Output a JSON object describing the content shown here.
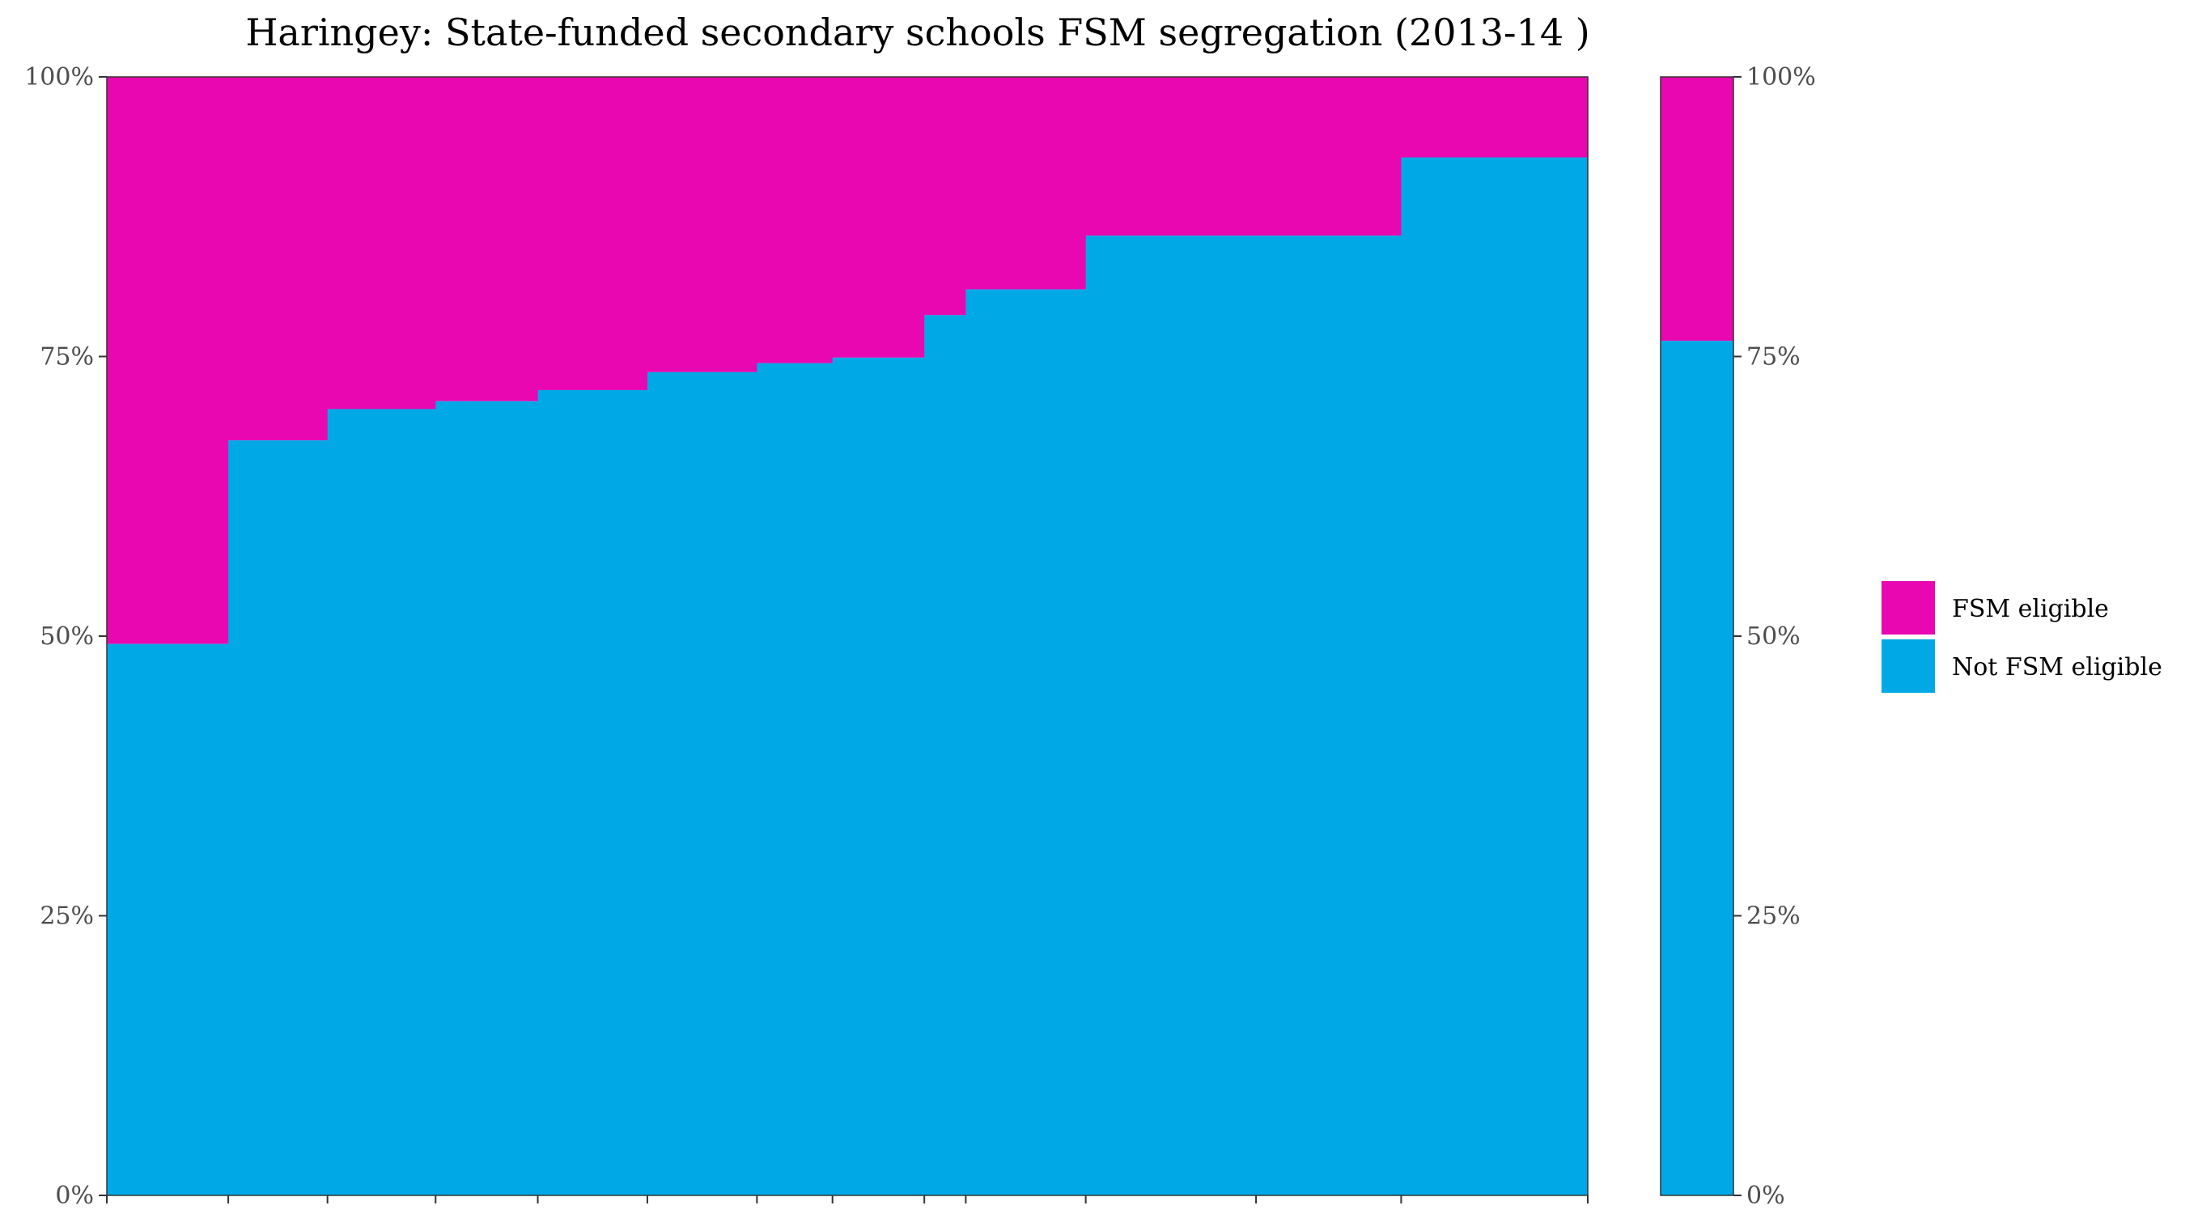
{
  "colors": {
    "fsm": "#E807B0",
    "not_fsm": "#00A8E6",
    "axis": "#333333",
    "label": "#4d4d4d"
  },
  "chart_data": {
    "type": "bar",
    "variant": "stacked-100-variable-width",
    "title": "Haringey: State-funded secondary schools FSM segregation (2013-14 )",
    "xlabel": "",
    "ylabel": "",
    "ylim": [
      0,
      100
    ],
    "y_ticks": [
      "0%",
      "25%",
      "50%",
      "75%",
      "100%"
    ],
    "x_range": [
      0,
      100
    ],
    "x_boundaries": [
      0,
      8.2,
      14.9,
      22.2,
      29.1,
      36.5,
      43.9,
      49.0,
      55.2,
      58.0,
      66.1,
      77.6,
      87.4,
      99.2
    ],
    "schools": [
      {
        "not_fsm": 49.3,
        "fsm": 50.7
      },
      {
        "not_fsm": 67.5,
        "fsm": 32.5
      },
      {
        "not_fsm": 70.3,
        "fsm": 29.7
      },
      {
        "not_fsm": 71.0,
        "fsm": 29.0
      },
      {
        "not_fsm": 72.0,
        "fsm": 28.0
      },
      {
        "not_fsm": 73.6,
        "fsm": 26.4
      },
      {
        "not_fsm": 74.4,
        "fsm": 25.6
      },
      {
        "not_fsm": 74.9,
        "fsm": 25.1
      },
      {
        "not_fsm": 78.7,
        "fsm": 21.3
      },
      {
        "not_fsm": 81.0,
        "fsm": 19.0
      },
      {
        "not_fsm": 85.8,
        "fsm": 14.2
      },
      {
        "not_fsm": 85.8,
        "fsm": 14.2
      },
      {
        "not_fsm": 92.8,
        "fsm": 7.2
      }
    ],
    "overall": {
      "not_fsm": 76.4,
      "fsm": 23.6
    },
    "legend": {
      "position": "right",
      "entries": [
        "FSM eligible",
        "Not FSM eligible"
      ]
    }
  }
}
